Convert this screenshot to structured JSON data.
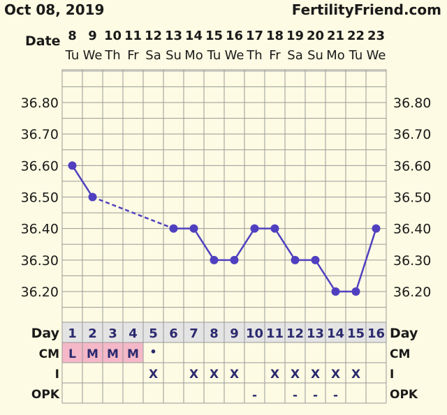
{
  "header": {
    "date": "Oct 08, 2019",
    "site": "FertilityFriend.com"
  },
  "labels": {
    "date": "Date",
    "day": "Day",
    "cm": "CM",
    "i": "I",
    "opk": "OPK"
  },
  "colors": {
    "background": "#fdfbe3",
    "line": "#5040c0",
    "cm_highlight": "#f4b8c8",
    "day_row": "#e4e4e4",
    "grid": "#999999"
  },
  "chart_data": {
    "type": "line",
    "dates": [
      "8",
      "9",
      "10",
      "11",
      "12",
      "13",
      "14",
      "15",
      "16",
      "17",
      "18",
      "19",
      "20",
      "21",
      "22",
      "23"
    ],
    "weekdays": [
      "Tu",
      "We",
      "Th",
      "Fr",
      "Sa",
      "Su",
      "Mo",
      "Tu",
      "We",
      "Th",
      "Fr",
      "Sa",
      "Su",
      "Mo",
      "Tu",
      "We"
    ],
    "cycle_days": [
      "1",
      "2",
      "3",
      "4",
      "5",
      "6",
      "7",
      "8",
      "9",
      "10",
      "11",
      "12",
      "13",
      "14",
      "15",
      "16"
    ],
    "yticks": [
      "36.80",
      "36.70",
      "36.60",
      "36.50",
      "36.40",
      "36.30",
      "36.20"
    ],
    "ylim": [
      36.1,
      36.95
    ],
    "temperatures": [
      36.6,
      36.5,
      null,
      null,
      null,
      36.4,
      36.4,
      36.3,
      36.3,
      36.4,
      36.4,
      36.3,
      36.3,
      36.2,
      36.2,
      36.4
    ],
    "cm": [
      "L",
      "M",
      "M",
      "M",
      "•",
      "",
      "",
      "",
      "",
      "",
      "",
      "",
      "",
      "",
      "",
      ""
    ],
    "intercourse": [
      "",
      "",
      "",
      "",
      "X",
      "",
      "X",
      "X",
      "X",
      "",
      "X",
      "X",
      "X",
      "X",
      "X",
      ""
    ],
    "opk": [
      "",
      "",
      "",
      "",
      "",
      "",
      "",
      "",
      "",
      "-",
      "",
      "-",
      "-",
      "-",
      "",
      ""
    ]
  }
}
